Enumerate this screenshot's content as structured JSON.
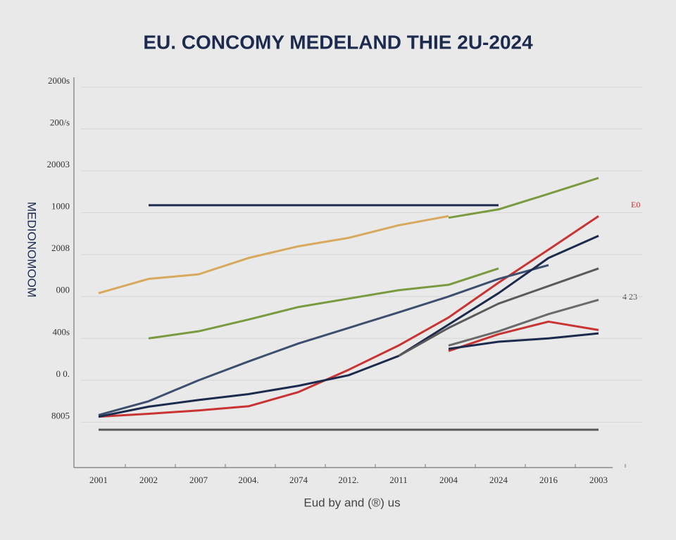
{
  "chart_data": {
    "type": "line",
    "title": "EU. CONCOMY MEDELAND THIE 2U-2024",
    "x_label": "Eud by and (®) us",
    "y_label": "MEDIONOMOOM",
    "annotations": [
      "E0",
      "4 23"
    ],
    "categories": [
      "2001",
      "2002",
      "2007",
      "2004.",
      "2074",
      "2012.",
      "2011",
      "2004",
      "2024",
      "2016",
      "2003"
    ],
    "ylim": [
      0,
      9.4
    ],
    "yticks": [
      {
        "value": 1,
        "label": "8005"
      },
      {
        "value": 2,
        "label": "0 0."
      },
      {
        "value": 3,
        "label": "400s"
      },
      {
        "value": 4,
        "label": "000"
      },
      {
        "value": 5,
        "label": "2008"
      },
      {
        "value": 6,
        "label": "1000"
      },
      {
        "value": 7,
        "label": "20003"
      },
      {
        "value": 8,
        "label": "200/s"
      },
      {
        "value": 9,
        "label": "2000s"
      }
    ],
    "grid": true,
    "series": [
      {
        "color": "#d8a95c",
        "values": [
          4.08,
          4.42,
          4.53,
          4.92,
          5.2,
          5.4,
          5.7,
          5.92,
          null,
          null,
          null
        ]
      },
      {
        "color": "#7a9a3f",
        "values": [
          null,
          3.0,
          3.17,
          3.45,
          3.75,
          3.95,
          4.15,
          4.28,
          4.67,
          null,
          null
        ]
      },
      {
        "color": "#7a9a3f",
        "values": [
          null,
          null,
          null,
          null,
          null,
          null,
          null,
          5.88,
          6.08,
          6.45,
          6.83
        ]
      },
      {
        "color": "#1c2a4d",
        "values": [
          null,
          6.18,
          6.18,
          6.18,
          6.18,
          6.18,
          6.18,
          6.18,
          6.18,
          null,
          null
        ]
      },
      {
        "color": "#c93332",
        "values": [
          1.13,
          1.2,
          1.28,
          1.38,
          1.72,
          2.25,
          2.83,
          3.5,
          4.33,
          5.12,
          5.92
        ]
      },
      {
        "color": "#3d4f6e",
        "values": [
          1.17,
          1.5,
          2.0,
          2.45,
          2.88,
          3.25,
          3.62,
          4.0,
          4.42,
          4.75,
          null
        ]
      },
      {
        "color": "#1c2a4d",
        "values": [
          1.13,
          1.37,
          1.53,
          1.67,
          1.87,
          2.12,
          2.58,
          3.33,
          4.08,
          4.92,
          5.45
        ]
      },
      {
        "color": "#5a5a5a",
        "values": [
          null,
          null,
          null,
          null,
          null,
          null,
          2.58,
          3.25,
          3.83,
          4.25,
          4.67
        ]
      },
      {
        "color": "#6a6a6a",
        "values": [
          null,
          null,
          null,
          null,
          null,
          null,
          null,
          2.83,
          3.17,
          3.58,
          3.92
        ]
      },
      {
        "color": "#c93332",
        "values": [
          null,
          null,
          null,
          null,
          null,
          null,
          null,
          2.7,
          3.1,
          3.4,
          3.2
        ]
      },
      {
        "color": "#1c2a4d",
        "values": [
          null,
          null,
          null,
          null,
          null,
          null,
          null,
          2.75,
          2.92,
          3.0,
          3.12
        ]
      },
      {
        "color": "#5a5a5a",
        "values": [
          0.82,
          0.82,
          0.82,
          0.82,
          0.82,
          0.82,
          0.82,
          0.82,
          0.82,
          0.82,
          0.82
        ]
      }
    ]
  }
}
